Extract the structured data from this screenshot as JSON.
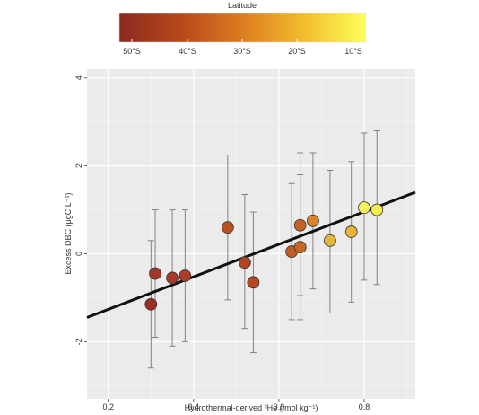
{
  "chart_data": {
    "type": "scatter",
    "xlabel": "Hydrothermal-derived ³He (fmol kg⁻¹)",
    "ylabel": "Excess DBC (μgC L⁻¹)",
    "xlim": [
      0.15,
      0.92
    ],
    "ylim": [
      -3.3,
      4.2
    ],
    "x_ticks": [
      0.2,
      0.4,
      0.6,
      0.8
    ],
    "x_tick_labels": [
      "0.2",
      "0.4",
      "0.6",
      "0.8"
    ],
    "y_ticks": [
      -2,
      0,
      2,
      4
    ],
    "y_tick_labels": [
      "-2",
      "0",
      "2",
      "4"
    ],
    "grid": true,
    "background": "#ebebeb",
    "colorbar": {
      "title": "Latitude",
      "tick_labels": [
        "50°S",
        "40°S",
        "30°S",
        "20°S",
        "10°S"
      ],
      "colors": [
        "#8b2a1e",
        "#b8481c",
        "#dc7d1f",
        "#f2bd2d",
        "#ffff5a"
      ],
      "position": "top"
    },
    "regression_line": {
      "x": [
        0.15,
        0.92
      ],
      "y": [
        -1.45,
        1.4
      ],
      "color": "#111111"
    },
    "points": [
      {
        "x": 0.3,
        "y": -1.15,
        "err_low": -2.6,
        "err_high": 0.3,
        "color": "#9b2f23"
      },
      {
        "x": 0.31,
        "y": -0.45,
        "err_low": -1.9,
        "err_high": 1.0,
        "color": "#a3372a"
      },
      {
        "x": 0.35,
        "y": -0.55,
        "err_low": -2.1,
        "err_high": 1.0,
        "color": "#a83a2b"
      },
      {
        "x": 0.38,
        "y": -0.5,
        "err_low": -2.0,
        "err_high": 1.0,
        "color": "#ab3c2c"
      },
      {
        "x": 0.48,
        "y": 0.6,
        "err_low": -1.05,
        "err_high": 2.25,
        "color": "#b8501f"
      },
      {
        "x": 0.52,
        "y": -0.2,
        "err_low": -1.7,
        "err_high": 1.35,
        "color": "#b24422"
      },
      {
        "x": 0.54,
        "y": -0.65,
        "err_low": -2.25,
        "err_high": 0.95,
        "color": "#b64621"
      },
      {
        "x": 0.63,
        "y": 0.05,
        "err_low": -1.5,
        "err_high": 1.6,
        "color": "#c35c22"
      },
      {
        "x": 0.65,
        "y": 0.15,
        "err_low": -1.5,
        "err_high": 1.8,
        "color": "#c86623"
      },
      {
        "x": 0.65,
        "y": 0.65,
        "err_low": -0.95,
        "err_high": 2.3,
        "color": "#c46124"
      },
      {
        "x": 0.68,
        "y": 0.75,
        "err_low": -0.8,
        "err_high": 2.3,
        "color": "#d8852a"
      },
      {
        "x": 0.72,
        "y": 0.3,
        "err_low": -1.35,
        "err_high": 1.9,
        "color": "#e4b53c"
      },
      {
        "x": 0.77,
        "y": 0.5,
        "err_low": -1.1,
        "err_high": 2.1,
        "color": "#e8b53a"
      },
      {
        "x": 0.8,
        "y": 1.05,
        "err_low": -0.6,
        "err_high": 2.75,
        "color": "#f8f35a"
      },
      {
        "x": 0.83,
        "y": 1.0,
        "err_low": -0.7,
        "err_high": 2.8,
        "color": "#f3f050"
      }
    ]
  }
}
